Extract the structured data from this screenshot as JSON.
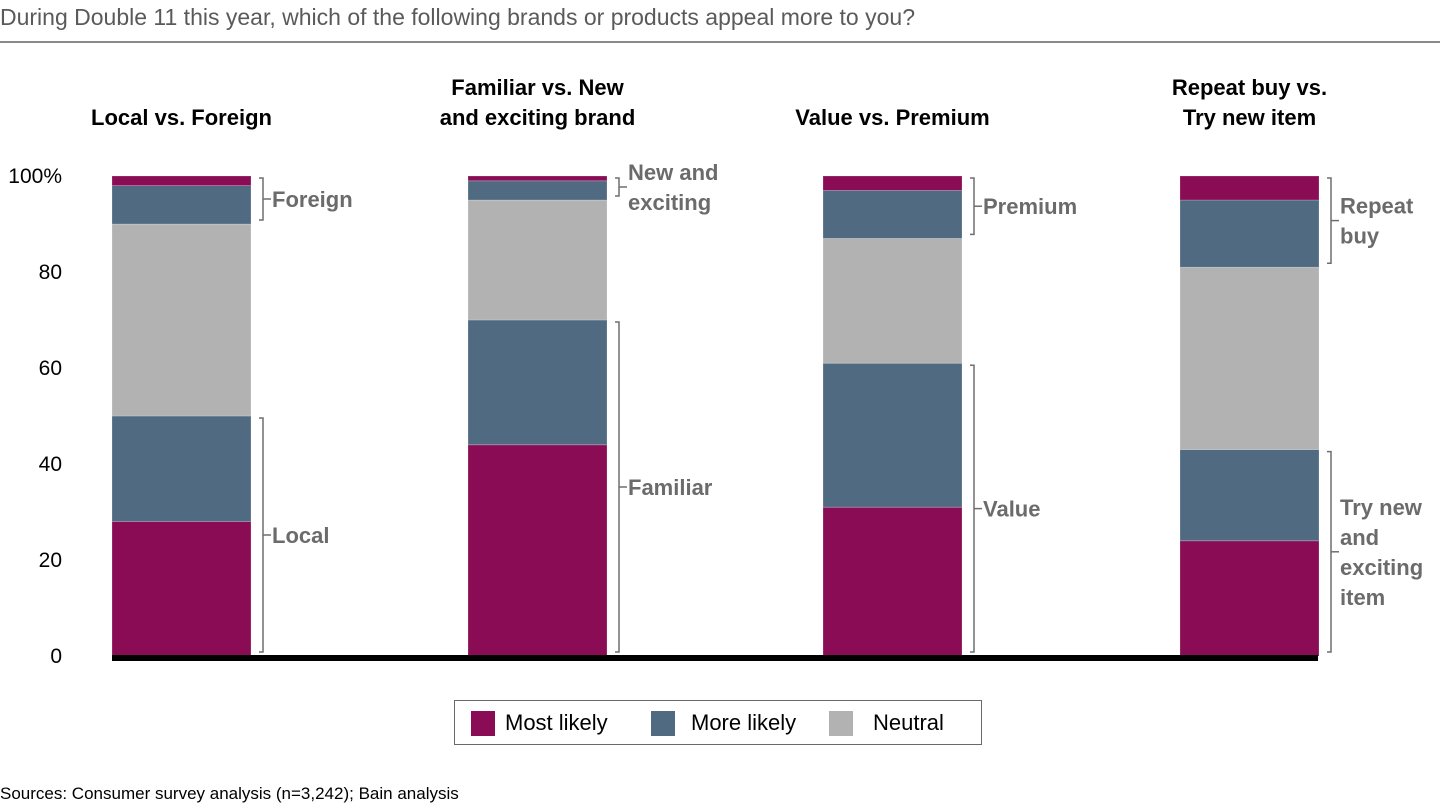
{
  "chart_data": {
    "type": "bar",
    "stacked": true,
    "title": "During Double 11 this year, which of the following brands or products appeal more to you?",
    "ylim": [
      0,
      100
    ],
    "yticks": [
      "0",
      "20",
      "40",
      "60",
      "80",
      "100%"
    ],
    "ytick_values": [
      0,
      20,
      40,
      60,
      80,
      100
    ],
    "grid": false,
    "legend_position": "bottom",
    "categories": [
      "Local vs. Foreign",
      "Familiar vs. New and exciting brand",
      "Value vs. Premium",
      "Repeat buy vs. Try new item"
    ],
    "category_lines": [
      [
        "Local vs. Foreign"
      ],
      [
        "Familiar vs. New",
        "and exciting brand"
      ],
      [
        "Value vs. Premium"
      ],
      [
        "Repeat buy vs.",
        "Try new item"
      ]
    ],
    "segment_order_bottom_to_top": [
      "Most likely",
      "More likely",
      "Neutral",
      "More likely",
      "Most likely"
    ],
    "bars": [
      {
        "category": "Local vs. Foreign",
        "segments": [
          28,
          22,
          40,
          8,
          2
        ]
      },
      {
        "category": "Familiar vs. New and exciting brand",
        "segments": [
          44,
          26,
          25,
          4,
          1
        ]
      },
      {
        "category": "Value vs. Premium",
        "segments": [
          31,
          30,
          26,
          10,
          3
        ]
      },
      {
        "category": "Repeat buy vs. Try new item",
        "segments": [
          24,
          19,
          38,
          14,
          5
        ]
      }
    ],
    "brackets": [
      {
        "bottom_label": [
          "Local"
        ],
        "top_label": [
          "Foreign"
        ]
      },
      {
        "bottom_label": [
          "Familiar"
        ],
        "top_label": [
          "New and",
          "exciting"
        ]
      },
      {
        "bottom_label": [
          "Value"
        ],
        "top_label": [
          "Premium"
        ]
      },
      {
        "bottom_label": [
          "Try new",
          "and",
          "exciting",
          "item"
        ],
        "top_label": [
          "Repeat",
          "buy"
        ]
      }
    ],
    "legend": [
      {
        "name": "Most likely",
        "color": "#8a0c55"
      },
      {
        "name": "More likely",
        "color": "#506a82"
      },
      {
        "name": "Neutral",
        "color": "#b2b2b2"
      }
    ],
    "source": "Sources: Consumer survey analysis (n=3,242); Bain analysis"
  }
}
